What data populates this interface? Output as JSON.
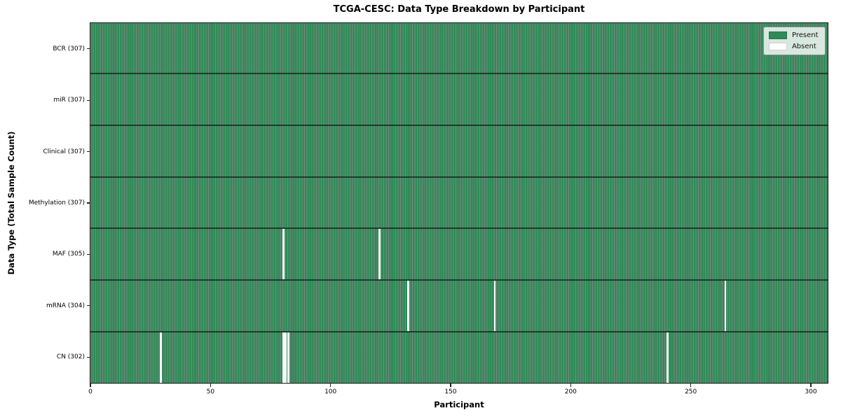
{
  "colors": {
    "present": "#2e8b57",
    "absent": "#ffffff",
    "cell_edge": "rgba(14,40,26,0.55)",
    "row_separator": "rgba(10,10,10,0.62)",
    "plot_border": "#1a1a1a",
    "legend_bg": "rgba(255,255,255,0.8)",
    "legend_border": "#8a8a8a"
  },
  "chart_data": {
    "type": "heatmap",
    "title": "TCGA-CESC: Data Type Breakdown by Participant",
    "xlabel": "Participant",
    "ylabel": "Data Type (Total Sample Count)",
    "n_participants": 307,
    "x_ticks": [
      0,
      50,
      100,
      150,
      200,
      250,
      300
    ],
    "x_range": [
      0,
      307
    ],
    "grid": false,
    "legend_position": "upper right",
    "legend_items": [
      {
        "label": "Present",
        "value": "present"
      },
      {
        "label": "Absent",
        "value": "absent"
      }
    ],
    "rows": [
      {
        "data_type": "BCR",
        "label": "BCR (307)",
        "present_count": 307,
        "absent_participants": []
      },
      {
        "data_type": "miR",
        "label": "miR (307)",
        "present_count": 307,
        "absent_participants": []
      },
      {
        "data_type": "Clinical",
        "label": "Clinical (307)",
        "present_count": 307,
        "absent_participants": []
      },
      {
        "data_type": "Methylation",
        "label": "Methylation (307)",
        "present_count": 307,
        "absent_participants": []
      },
      {
        "data_type": "MAF",
        "label": "MAF (305)",
        "present_count": 305,
        "absent_participants": [
          80,
          120
        ]
      },
      {
        "data_type": "mRNA",
        "label": "mRNA (304)",
        "present_count": 304,
        "absent_participants": [
          132,
          168,
          264
        ]
      },
      {
        "data_type": "CN",
        "label": "CN (302)",
        "present_count": 302,
        "absent_participants": [
          29,
          80,
          81,
          82,
          240
        ]
      }
    ]
  }
}
